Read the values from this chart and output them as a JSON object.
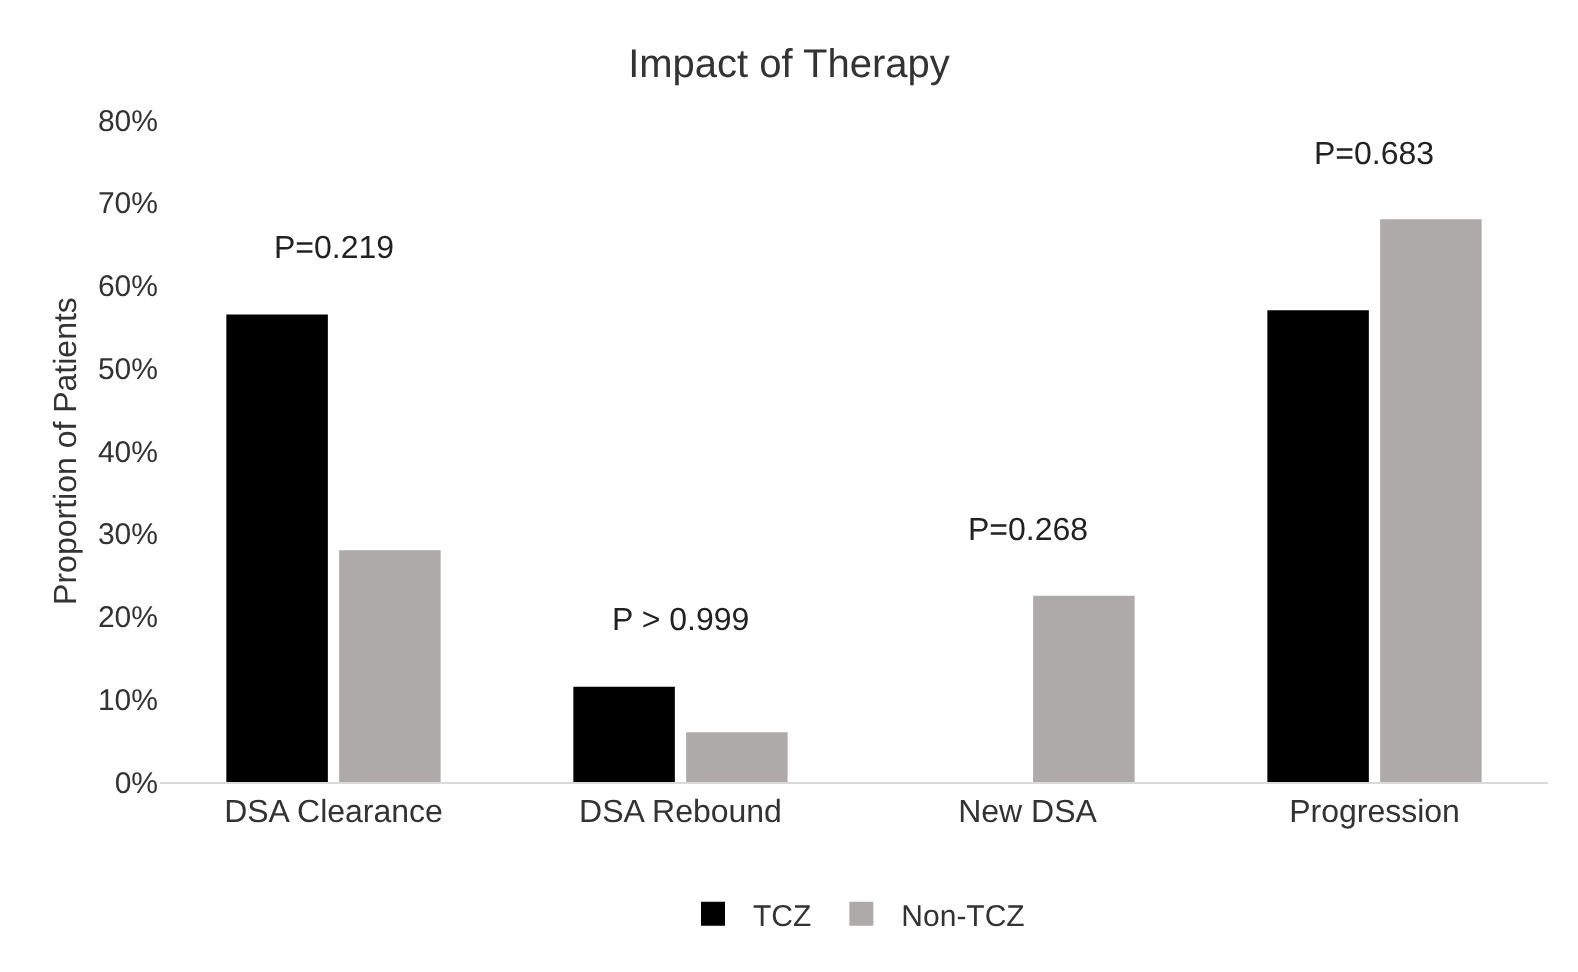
{
  "chart_data": {
    "type": "bar",
    "title": "Impact of Therapy",
    "ylabel": "Proportion of Patients",
    "categories": [
      "DSA Clearance",
      "DSA Rebound",
      "New DSA",
      "Progression"
    ],
    "series": [
      {
        "name": "TCZ",
        "color": "#000000",
        "values": [
          56.5,
          11.5,
          0,
          57
        ]
      },
      {
        "name": "Non-TCZ",
        "color": "#aeaaaa",
        "values": [
          28,
          6,
          22.5,
          68
        ]
      }
    ],
    "ylim": [
      0,
      80
    ],
    "yticks": [
      {
        "value": 0,
        "label": "0%"
      },
      {
        "value": 10,
        "label": "10%"
      },
      {
        "value": 20,
        "label": "20%"
      },
      {
        "value": 30,
        "label": "30%"
      },
      {
        "value": 40,
        "label": "40%"
      },
      {
        "value": 50,
        "label": "50%"
      },
      {
        "value": 60,
        "label": "60%"
      },
      {
        "value": 70,
        "label": "70%"
      },
      {
        "value": 80,
        "label": "80%"
      }
    ],
    "annotations": [
      "P=0.219",
      "P > 0.999",
      "P=0.268",
      "P=0.683"
    ],
    "grid": false,
    "legend": "bottom"
  }
}
